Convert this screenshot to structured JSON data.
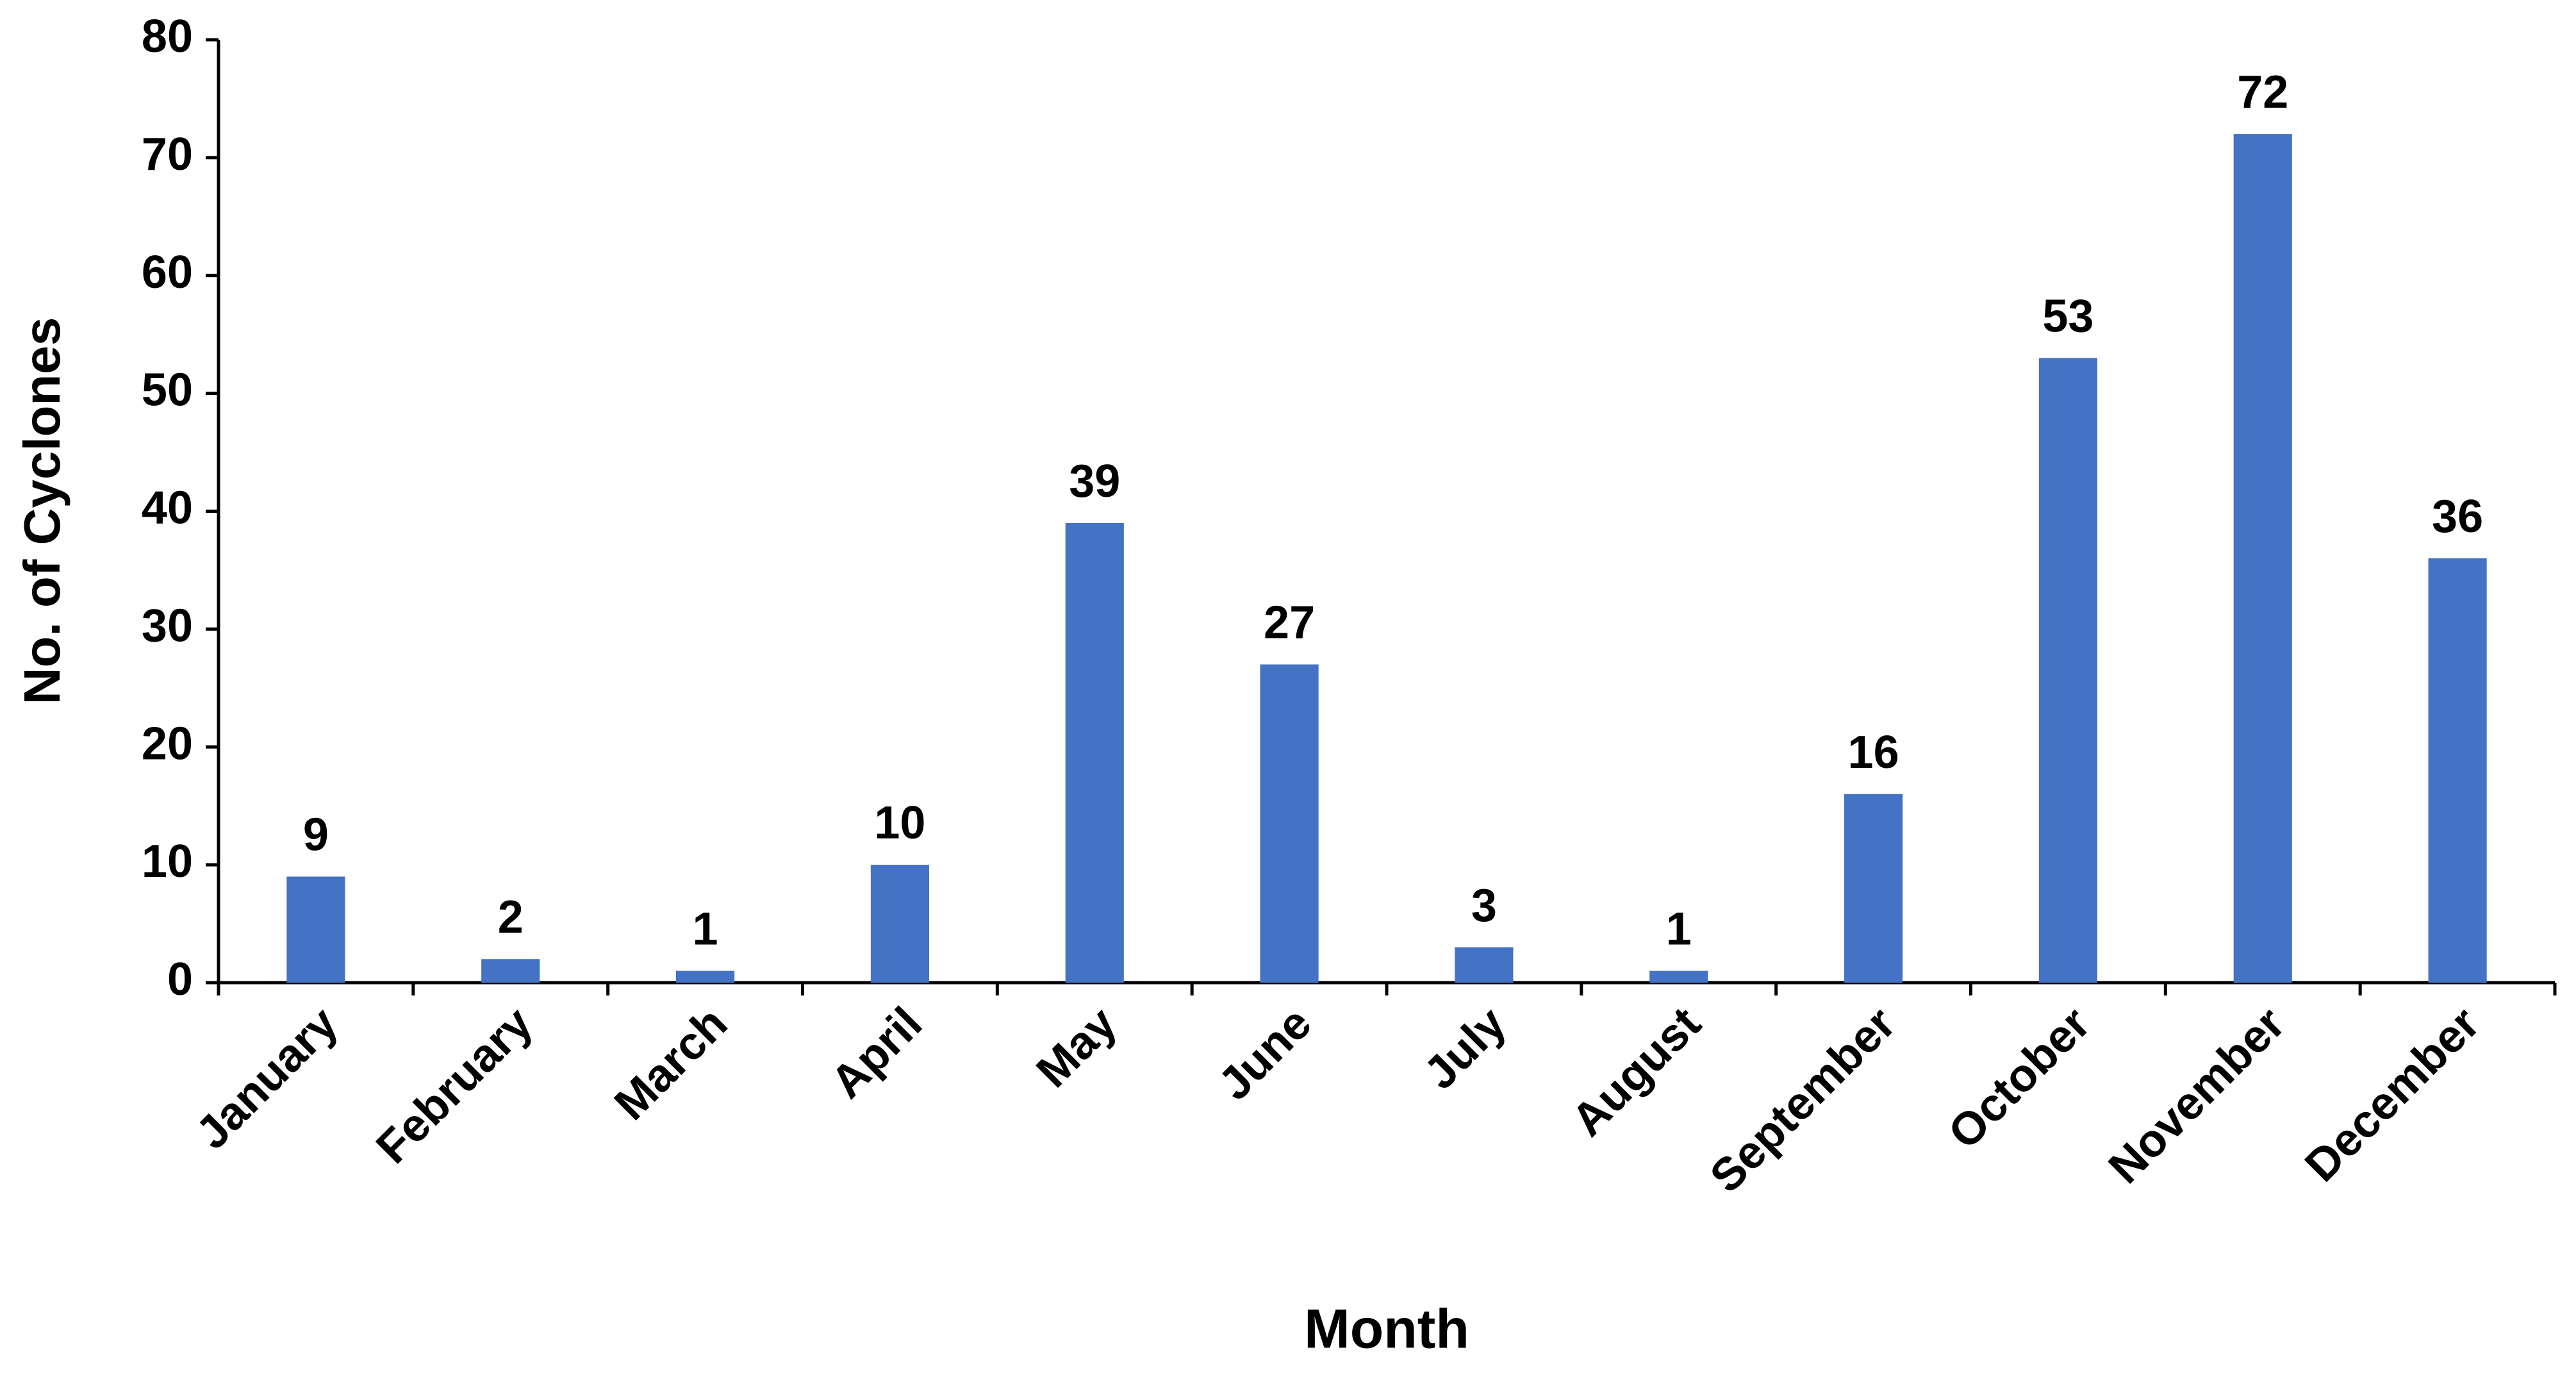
{
  "chart_data": {
    "type": "bar",
    "x_label": "Month",
    "y_label": "No. of Cyclones",
    "categories": [
      "January",
      "February",
      "March",
      "April",
      "May",
      "June",
      "July",
      "August",
      "September",
      "October",
      "November",
      "December"
    ],
    "values": [
      9,
      2,
      1,
      10,
      39,
      27,
      3,
      1,
      16,
      53,
      72,
      36
    ],
    "color": "#4472c4",
    "ylim": [
      0,
      80
    ],
    "yticks": [
      0,
      10,
      20,
      30,
      40,
      50,
      60,
      70,
      80
    ],
    "grid": false
  }
}
